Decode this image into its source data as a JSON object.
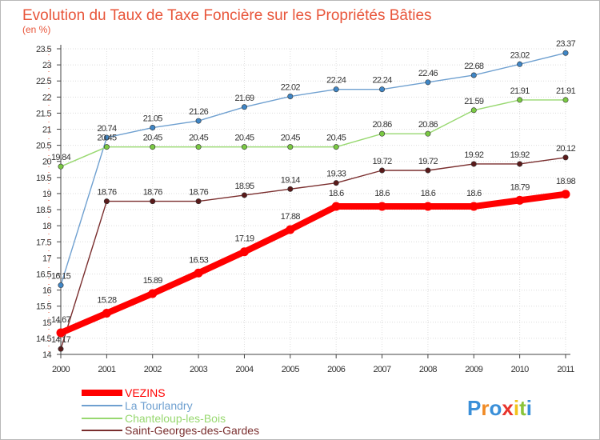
{
  "chart_data": {
    "type": "line",
    "title": "Evolution du Taux de Taxe Foncière sur les Propriétés Bâties",
    "subtitle": "(en %)",
    "x": [
      "2000",
      "2001",
      "2002",
      "2003",
      "2004",
      "2005",
      "2006",
      "2007",
      "2008",
      "2009",
      "2010",
      "2011"
    ],
    "ylim": [
      14,
      23.5
    ],
    "yticks": [
      "14",
      "14.5",
      "15",
      "15.5",
      "16",
      "16.5",
      "17",
      "17.5",
      "18",
      "18.5",
      "19",
      "19.5",
      "20",
      "20.5",
      "21",
      "21.5",
      "22",
      "22.5",
      "23",
      "23.5"
    ],
    "grid": true,
    "legend_position": "bottom-left",
    "series": [
      {
        "name": "VEZINS",
        "color": "#ff0000",
        "values": [
          14.67,
          15.28,
          15.89,
          16.53,
          17.19,
          17.88,
          18.6,
          18.6,
          18.6,
          18.6,
          18.79,
          18.98
        ],
        "labels": [
          "14.67",
          "15.28",
          "15.89",
          "16.53",
          "17.19",
          "17.88",
          "18.6",
          "18.6",
          "18.6",
          "18.6",
          "18.79",
          "18.98"
        ]
      },
      {
        "name": "La Tourlandry",
        "color": "#6fa0d0",
        "values": [
          16.15,
          20.74,
          21.05,
          21.26,
          21.69,
          22.02,
          22.24,
          22.24,
          22.46,
          22.68,
          23.02,
          23.37
        ],
        "labels": [
          "16.15",
          "20.74",
          "21.05",
          "21.26",
          "21.69",
          "22.02",
          "22.24",
          "22.24",
          "22.46",
          "22.68",
          "23.02",
          "23.37"
        ]
      },
      {
        "name": "Chanteloup-les-Bois",
        "color": "#98d870",
        "values": [
          19.84,
          20.45,
          20.45,
          20.45,
          20.45,
          20.45,
          20.45,
          20.86,
          20.86,
          21.59,
          21.91,
          21.91
        ],
        "labels": [
          "19.84",
          "20.45",
          "20.45",
          "20.45",
          "20.45",
          "20.45",
          "20.45",
          "20.86",
          "20.86",
          "21.59",
          "21.91",
          "21.91"
        ]
      },
      {
        "name": "Saint-Georges-des-Gardes",
        "color": "#7a2e2e",
        "values": [
          14.17,
          18.76,
          18.76,
          18.76,
          18.95,
          19.14,
          19.33,
          19.72,
          19.72,
          19.92,
          19.92,
          20.12
        ],
        "labels": [
          "14.17",
          "18.76",
          "18.76",
          "18.76",
          "18.95",
          "19.14",
          "19.33",
          "19.72",
          "19.72",
          "19.92",
          "19.92",
          "20.12"
        ]
      }
    ]
  },
  "brand": {
    "logo_text": "Proxiti",
    "letter_colors": [
      "#3a8fd8",
      "#f08a24",
      "#3a8fd8",
      "#e8342c",
      "#f2c21a",
      "#8ac43a",
      "#3a8fd8"
    ]
  }
}
